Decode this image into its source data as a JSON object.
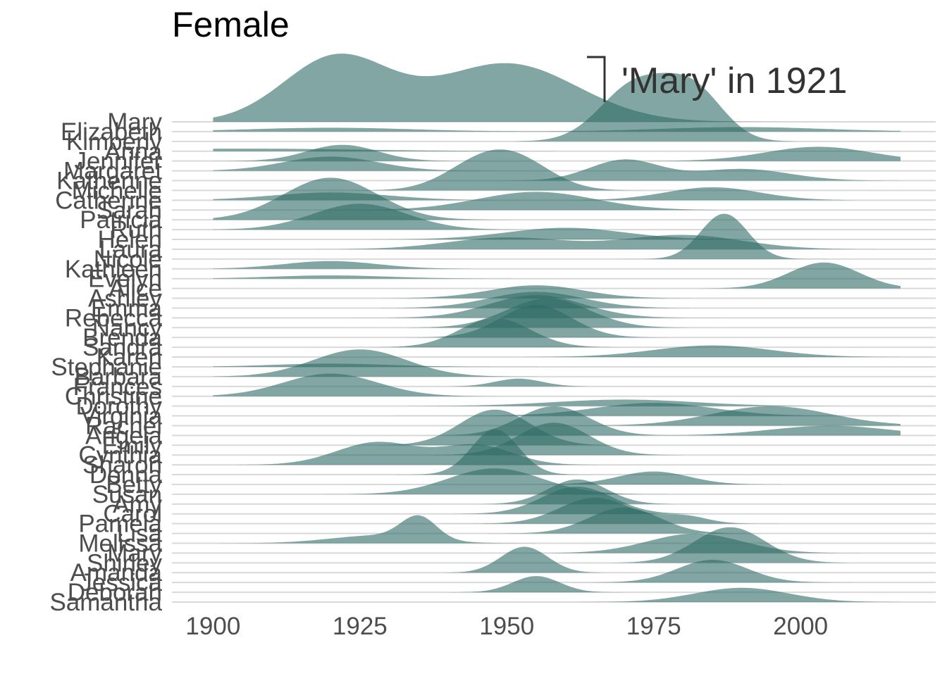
{
  "chart_data": {
    "type": "area",
    "title": "Female",
    "xlabel": "",
    "ylabel": "",
    "xlim": [
      1893,
      2023
    ],
    "x_ticks": [
      1900,
      1925,
      1950,
      1975,
      2000
    ],
    "grid": true,
    "fill_color": "#2f6b66",
    "fill_opacity": 0.6,
    "annotation": {
      "text": "'Mary' in 1921",
      "year": 1921
    },
    "series": [
      {
        "name": "Mary",
        "start": 1900,
        "end": 2017,
        "peaks": [
          [
            1921,
            1.0,
            9
          ],
          [
            1950,
            0.9,
            12
          ]
        ]
      },
      {
        "name": "Elizabeth",
        "start": 1900,
        "end": 2017,
        "peaks": [
          [
            1920,
            0.06,
            14
          ],
          [
            1990,
            0.07,
            14
          ]
        ]
      },
      {
        "name": "Kimberly",
        "start": 1900,
        "end": 2017,
        "peaks": [
          [
            1972,
            0.88,
            6
          ],
          [
            1982,
            0.72,
            5
          ]
        ]
      },
      {
        "name": "Anna",
        "start": 1900,
        "end": 2017,
        "peaks": [
          [
            1905,
            0.04,
            20
          ]
        ]
      },
      {
        "name": "Jennifer",
        "start": 1900,
        "end": 2017,
        "peaks": [
          [
            1922,
            0.25,
            6
          ],
          [
            2003,
            0.22,
            9
          ]
        ]
      },
      {
        "name": "Margaret",
        "start": 1900,
        "end": 2017,
        "peaks": [
          [
            1920,
            0.22,
            8
          ]
        ]
      },
      {
        "name": "Katherine",
        "start": 1900,
        "end": 2017,
        "peaks": [
          [
            1970,
            0.32,
            6
          ],
          [
            1990,
            0.18,
            8
          ]
        ]
      },
      {
        "name": "Michelle",
        "start": 1900,
        "end": 2017,
        "peaks": [
          [
            1945,
            0.35,
            6
          ],
          [
            1952,
            0.4,
            6
          ]
        ]
      },
      {
        "name": "Catherine",
        "start": 1900,
        "end": 2017,
        "peaks": [
          [
            1920,
            0.12,
            10
          ],
          [
            1985,
            0.2,
            8
          ]
        ]
      },
      {
        "name": "Sarah",
        "start": 1900,
        "end": 2017,
        "peaks": [
          [
            1955,
            0.28,
            10
          ]
        ]
      },
      {
        "name": "Patricia",
        "start": 1900,
        "end": 2017,
        "peaks": [
          [
            1920,
            0.65,
            8
          ]
        ]
      },
      {
        "name": "Ruth",
        "start": 1900,
        "end": 2017,
        "peaks": [
          [
            1925,
            0.4,
            8
          ]
        ]
      },
      {
        "name": "Helen",
        "start": 1900,
        "end": 2017,
        "peaks": [
          [
            1960,
            0.18,
            10
          ]
        ]
      },
      {
        "name": "Laura",
        "start": 1900,
        "end": 2017,
        "peaks": [
          [
            1950,
            0.18,
            10
          ],
          [
            1980,
            0.22,
            10
          ]
        ]
      },
      {
        "name": "Nicole",
        "start": 1900,
        "end": 2017,
        "peaks": [
          [
            1987,
            0.7,
            4
          ]
        ]
      },
      {
        "name": "Kathleen",
        "start": 1900,
        "end": 2017,
        "peaks": [
          [
            1920,
            0.12,
            8
          ]
        ]
      },
      {
        "name": "Evelyn",
        "start": 1900,
        "end": 2017,
        "peaks": [
          [
            1920,
            0.05,
            10
          ]
        ]
      },
      {
        "name": "Alice",
        "start": 1900,
        "end": 2017,
        "peaks": [
          [
            2004,
            0.4,
            6
          ]
        ]
      },
      {
        "name": "Ashley",
        "start": 1900,
        "end": 2017,
        "peaks": [
          [
            1955,
            0.2,
            8
          ]
        ]
      },
      {
        "name": "Emma",
        "start": 1900,
        "end": 2017,
        "peaks": [
          [
            1955,
            0.25,
            8
          ]
        ]
      },
      {
        "name": "Rebecca",
        "start": 1900,
        "end": 2017,
        "peaks": [
          [
            1955,
            0.35,
            8
          ]
        ]
      },
      {
        "name": "Nancy",
        "start": 1900,
        "end": 2017,
        "peaks": [
          [
            1957,
            0.45,
            7
          ]
        ]
      },
      {
        "name": "Brenda",
        "start": 1900,
        "end": 2017,
        "peaks": [
          [
            1955,
            0.5,
            6
          ]
        ]
      },
      {
        "name": "Sandra",
        "start": 1900,
        "end": 2017,
        "peaks": [
          [
            1948,
            0.45,
            6
          ]
        ]
      },
      {
        "name": "Karen",
        "start": 1900,
        "end": 2017,
        "peaks": [
          [
            1985,
            0.18,
            10
          ]
        ]
      },
      {
        "name": "Stephanie",
        "start": 1900,
        "end": 2017,
        "peaks": [
          [
            1920,
            0.05,
            10
          ]
        ]
      },
      {
        "name": "Barbara",
        "start": 1900,
        "end": 2017,
        "peaks": [
          [
            1925,
            0.42,
            8
          ]
        ]
      },
      {
        "name": "Frances",
        "start": 1900,
        "end": 2017,
        "peaks": [
          [
            1952,
            0.12,
            4
          ]
        ]
      },
      {
        "name": "Christine",
        "start": 1900,
        "end": 2017,
        "peaks": [
          [
            1920,
            0.35,
            8
          ]
        ]
      },
      {
        "name": "Dorothy",
        "start": 1900,
        "end": 2017,
        "peaks": [
          [
            1970,
            0.1,
            12
          ]
        ]
      },
      {
        "name": "Virginia",
        "start": 1900,
        "end": 2017,
        "peaks": [
          [
            1975,
            0.2,
            10
          ]
        ]
      },
      {
        "name": "Rachel",
        "start": 1900,
        "end": 2017,
        "peaks": [
          [
            1995,
            0.3,
            10
          ]
        ]
      },
      {
        "name": "Angela",
        "start": 1900,
        "end": 2017,
        "peaks": [
          [
            1958,
            0.45,
            6
          ],
          [
            2005,
            0.15,
            10
          ]
        ]
      },
      {
        "name": "Emily",
        "start": 1900,
        "end": 2017,
        "peaks": [
          [
            1948,
            0.55,
            6
          ]
        ]
      },
      {
        "name": "Cynthia",
        "start": 1900,
        "end": 2017,
        "peaks": [
          [
            1958,
            0.5,
            6
          ]
        ]
      },
      {
        "name": "Sharon",
        "start": 1900,
        "end": 2017,
        "peaks": [
          [
            1928,
            0.35,
            7
          ],
          [
            1945,
            0.3,
            6
          ]
        ]
      },
      {
        "name": "Donna",
        "start": 1900,
        "end": 2017,
        "peaks": [
          [
            1948,
            0.7,
            4
          ]
        ]
      },
      {
        "name": "Betty",
        "start": 1900,
        "end": 2017,
        "peaks": [
          [
            1975,
            0.2,
            6
          ]
        ]
      },
      {
        "name": "Susan",
        "start": 1900,
        "end": 2017,
        "peaks": [
          [
            1948,
            0.4,
            8
          ]
        ]
      },
      {
        "name": "Amy",
        "start": 1900,
        "end": 2017,
        "peaks": [
          [
            1962,
            0.38,
            5
          ]
        ]
      },
      {
        "name": "Carol",
        "start": 1900,
        "end": 2017,
        "peaks": [
          [
            1962,
            0.42,
            6
          ]
        ]
      },
      {
        "name": "Pamela",
        "start": 1900,
        "end": 2017,
        "peaks": [
          [
            1965,
            0.4,
            6
          ],
          [
            1980,
            0.12,
            4
          ]
        ]
      },
      {
        "name": "Lisa",
        "start": 1900,
        "end": 2017,
        "peaks": [
          [
            1970,
            0.4,
            6
          ]
        ]
      },
      {
        "name": "Melissa",
        "start": 1900,
        "end": 2017,
        "peaks": [
          [
            1935,
            0.35,
            3
          ],
          [
            1928,
            0.12,
            8
          ]
        ]
      },
      {
        "name": "Mary",
        "start": 1900,
        "end": 2017,
        "peaks": [
          [
            1982,
            0.3,
            8
          ]
        ]
      },
      {
        "name": "Shirley",
        "start": 1900,
        "end": 2017,
        "peaks": [
          [
            1988,
            0.55,
            6
          ]
        ]
      },
      {
        "name": "Amanda",
        "start": 1900,
        "end": 2017,
        "peaks": [
          [
            1953,
            0.4,
            4
          ]
        ]
      },
      {
        "name": "Jessica",
        "start": 1900,
        "end": 2017,
        "peaks": [
          [
            1985,
            0.35,
            6
          ]
        ]
      },
      {
        "name": "Deborah",
        "start": 1900,
        "end": 2017,
        "peaks": [
          [
            1955,
            0.25,
            4
          ]
        ]
      },
      {
        "name": "Samantha",
        "start": 1962,
        "end": 2017,
        "peaks": [
          [
            1990,
            0.22,
            8
          ]
        ]
      }
    ]
  }
}
